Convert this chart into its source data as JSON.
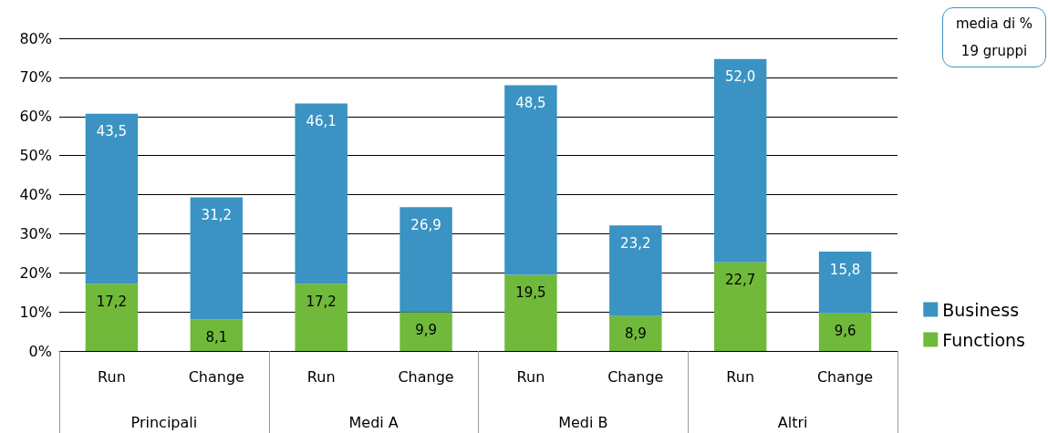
{
  "chart_data": {
    "type": "bar",
    "stacked": true,
    "categories": [
      "Run",
      "Change",
      "Run",
      "Change",
      "Run",
      "Change",
      "Run",
      "Change"
    ],
    "series": [
      {
        "name": "Functions",
        "color": "#70b93a",
        "values": [
          17.2,
          8.1,
          17.2,
          9.9,
          19.5,
          8.9,
          22.7,
          9.6
        ],
        "value_labels": [
          "17,2",
          "8,1",
          "17,2",
          "9,9",
          "19,5",
          "8,9",
          "22,7",
          "9,6"
        ]
      },
      {
        "name": "Business",
        "color": "#3a93c3",
        "values": [
          43.5,
          31.2,
          46.1,
          26.9,
          48.5,
          23.2,
          52.0,
          15.8
        ],
        "value_labels": [
          "43,5",
          "31,2",
          "46,1",
          "26,9",
          "48,5",
          "23,2",
          "52,0",
          "15,8"
        ]
      }
    ],
    "ylim": [
      0,
      80
    ],
    "yticks": [
      {
        "value": 0,
        "label": "0%"
      },
      {
        "value": 10,
        "label": "10%"
      },
      {
        "value": 20,
        "label": "20%"
      },
      {
        "value": 30,
        "label": "30%"
      },
      {
        "value": 40,
        "label": "40%"
      },
      {
        "value": 50,
        "label": "50%"
      },
      {
        "value": 60,
        "label": "60%"
      },
      {
        "value": 70,
        "label": "70%"
      },
      {
        "value": 80,
        "label": "80%"
      }
    ],
    "grid": "y",
    "legend": "right",
    "annotations": [
      "media di %\n19 gruppi",
      "Principali",
      "Medi A",
      "Medi B",
      "Altri"
    ]
  }
}
